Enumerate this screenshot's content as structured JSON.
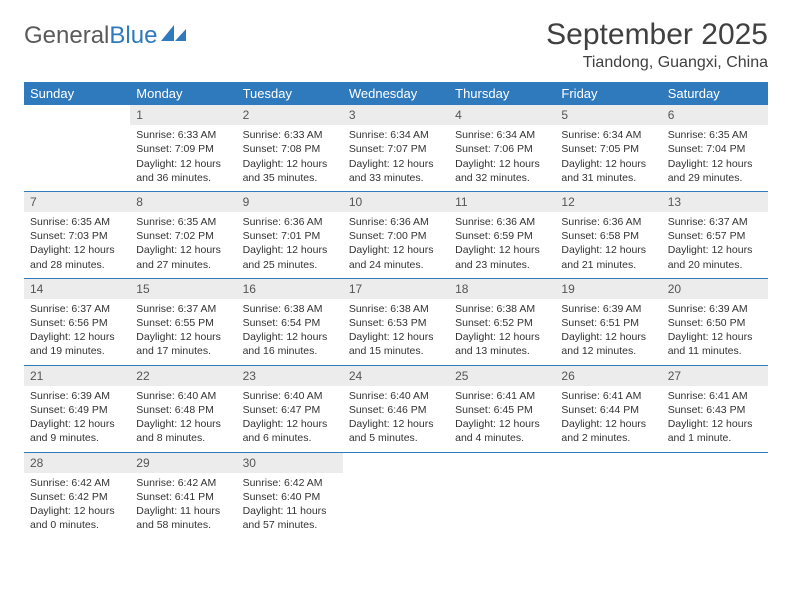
{
  "logo": {
    "text_gray": "General",
    "text_blue": "Blue"
  },
  "header": {
    "month_title": "September 2025",
    "location": "Tiandong, Guangxi, China"
  },
  "colors": {
    "header_bg": "#2f79bd",
    "header_text": "#ffffff",
    "daynum_bg": "#ececec",
    "rule": "#2f79bd"
  },
  "day_labels": [
    "Sunday",
    "Monday",
    "Tuesday",
    "Wednesday",
    "Thursday",
    "Friday",
    "Saturday"
  ],
  "weeks": [
    [
      {
        "n": "",
        "sr": "",
        "ss": "",
        "dl1": "",
        "dl2": "",
        "empty": true
      },
      {
        "n": "1",
        "sr": "Sunrise: 6:33 AM",
        "ss": "Sunset: 7:09 PM",
        "dl1": "Daylight: 12 hours",
        "dl2": "and 36 minutes."
      },
      {
        "n": "2",
        "sr": "Sunrise: 6:33 AM",
        "ss": "Sunset: 7:08 PM",
        "dl1": "Daylight: 12 hours",
        "dl2": "and 35 minutes."
      },
      {
        "n": "3",
        "sr": "Sunrise: 6:34 AM",
        "ss": "Sunset: 7:07 PM",
        "dl1": "Daylight: 12 hours",
        "dl2": "and 33 minutes."
      },
      {
        "n": "4",
        "sr": "Sunrise: 6:34 AM",
        "ss": "Sunset: 7:06 PM",
        "dl1": "Daylight: 12 hours",
        "dl2": "and 32 minutes."
      },
      {
        "n": "5",
        "sr": "Sunrise: 6:34 AM",
        "ss": "Sunset: 7:05 PM",
        "dl1": "Daylight: 12 hours",
        "dl2": "and 31 minutes."
      },
      {
        "n": "6",
        "sr": "Sunrise: 6:35 AM",
        "ss": "Sunset: 7:04 PM",
        "dl1": "Daylight: 12 hours",
        "dl2": "and 29 minutes."
      }
    ],
    [
      {
        "n": "7",
        "sr": "Sunrise: 6:35 AM",
        "ss": "Sunset: 7:03 PM",
        "dl1": "Daylight: 12 hours",
        "dl2": "and 28 minutes."
      },
      {
        "n": "8",
        "sr": "Sunrise: 6:35 AM",
        "ss": "Sunset: 7:02 PM",
        "dl1": "Daylight: 12 hours",
        "dl2": "and 27 minutes."
      },
      {
        "n": "9",
        "sr": "Sunrise: 6:36 AM",
        "ss": "Sunset: 7:01 PM",
        "dl1": "Daylight: 12 hours",
        "dl2": "and 25 minutes."
      },
      {
        "n": "10",
        "sr": "Sunrise: 6:36 AM",
        "ss": "Sunset: 7:00 PM",
        "dl1": "Daylight: 12 hours",
        "dl2": "and 24 minutes."
      },
      {
        "n": "11",
        "sr": "Sunrise: 6:36 AM",
        "ss": "Sunset: 6:59 PM",
        "dl1": "Daylight: 12 hours",
        "dl2": "and 23 minutes."
      },
      {
        "n": "12",
        "sr": "Sunrise: 6:36 AM",
        "ss": "Sunset: 6:58 PM",
        "dl1": "Daylight: 12 hours",
        "dl2": "and 21 minutes."
      },
      {
        "n": "13",
        "sr": "Sunrise: 6:37 AM",
        "ss": "Sunset: 6:57 PM",
        "dl1": "Daylight: 12 hours",
        "dl2": "and 20 minutes."
      }
    ],
    [
      {
        "n": "14",
        "sr": "Sunrise: 6:37 AM",
        "ss": "Sunset: 6:56 PM",
        "dl1": "Daylight: 12 hours",
        "dl2": "and 19 minutes."
      },
      {
        "n": "15",
        "sr": "Sunrise: 6:37 AM",
        "ss": "Sunset: 6:55 PM",
        "dl1": "Daylight: 12 hours",
        "dl2": "and 17 minutes."
      },
      {
        "n": "16",
        "sr": "Sunrise: 6:38 AM",
        "ss": "Sunset: 6:54 PM",
        "dl1": "Daylight: 12 hours",
        "dl2": "and 16 minutes."
      },
      {
        "n": "17",
        "sr": "Sunrise: 6:38 AM",
        "ss": "Sunset: 6:53 PM",
        "dl1": "Daylight: 12 hours",
        "dl2": "and 15 minutes."
      },
      {
        "n": "18",
        "sr": "Sunrise: 6:38 AM",
        "ss": "Sunset: 6:52 PM",
        "dl1": "Daylight: 12 hours",
        "dl2": "and 13 minutes."
      },
      {
        "n": "19",
        "sr": "Sunrise: 6:39 AM",
        "ss": "Sunset: 6:51 PM",
        "dl1": "Daylight: 12 hours",
        "dl2": "and 12 minutes."
      },
      {
        "n": "20",
        "sr": "Sunrise: 6:39 AM",
        "ss": "Sunset: 6:50 PM",
        "dl1": "Daylight: 12 hours",
        "dl2": "and 11 minutes."
      }
    ],
    [
      {
        "n": "21",
        "sr": "Sunrise: 6:39 AM",
        "ss": "Sunset: 6:49 PM",
        "dl1": "Daylight: 12 hours",
        "dl2": "and 9 minutes."
      },
      {
        "n": "22",
        "sr": "Sunrise: 6:40 AM",
        "ss": "Sunset: 6:48 PM",
        "dl1": "Daylight: 12 hours",
        "dl2": "and 8 minutes."
      },
      {
        "n": "23",
        "sr": "Sunrise: 6:40 AM",
        "ss": "Sunset: 6:47 PM",
        "dl1": "Daylight: 12 hours",
        "dl2": "and 6 minutes."
      },
      {
        "n": "24",
        "sr": "Sunrise: 6:40 AM",
        "ss": "Sunset: 6:46 PM",
        "dl1": "Daylight: 12 hours",
        "dl2": "and 5 minutes."
      },
      {
        "n": "25",
        "sr": "Sunrise: 6:41 AM",
        "ss": "Sunset: 6:45 PM",
        "dl1": "Daylight: 12 hours",
        "dl2": "and 4 minutes."
      },
      {
        "n": "26",
        "sr": "Sunrise: 6:41 AM",
        "ss": "Sunset: 6:44 PM",
        "dl1": "Daylight: 12 hours",
        "dl2": "and 2 minutes."
      },
      {
        "n": "27",
        "sr": "Sunrise: 6:41 AM",
        "ss": "Sunset: 6:43 PM",
        "dl1": "Daylight: 12 hours",
        "dl2": "and 1 minute."
      }
    ],
    [
      {
        "n": "28",
        "sr": "Sunrise: 6:42 AM",
        "ss": "Sunset: 6:42 PM",
        "dl1": "Daylight: 12 hours",
        "dl2": "and 0 minutes."
      },
      {
        "n": "29",
        "sr": "Sunrise: 6:42 AM",
        "ss": "Sunset: 6:41 PM",
        "dl1": "Daylight: 11 hours",
        "dl2": "and 58 minutes."
      },
      {
        "n": "30",
        "sr": "Sunrise: 6:42 AM",
        "ss": "Sunset: 6:40 PM",
        "dl1": "Daylight: 11 hours",
        "dl2": "and 57 minutes."
      },
      {
        "n": "",
        "sr": "",
        "ss": "",
        "dl1": "",
        "dl2": "",
        "empty": true
      },
      {
        "n": "",
        "sr": "",
        "ss": "",
        "dl1": "",
        "dl2": "",
        "empty": true
      },
      {
        "n": "",
        "sr": "",
        "ss": "",
        "dl1": "",
        "dl2": "",
        "empty": true
      },
      {
        "n": "",
        "sr": "",
        "ss": "",
        "dl1": "",
        "dl2": "",
        "empty": true
      }
    ]
  ]
}
